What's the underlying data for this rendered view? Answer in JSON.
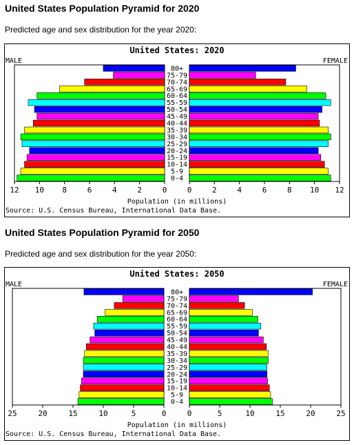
{
  "sections": [
    {
      "heading": "United States Population Pyramid for 2020",
      "subtitle": "Predicted age and sex distribution for the year 2020:"
    },
    {
      "heading": "United States Population Pyramid for 2050",
      "subtitle": "Predicted age and sex distribution for the year 2050:"
    }
  ],
  "chart_data": [
    {
      "type": "bar",
      "orientation": "horizontal-pyramid",
      "title": "United States: 2020",
      "left_label": "MALE",
      "right_label": "FEMALE",
      "xlabel": "Population (in millions)",
      "source": "Source: U.S. Census Bureau, International Data Base.",
      "xlim": [
        0,
        12
      ],
      "xticks": [
        "12",
        "10",
        "8",
        "6",
        "4",
        "2",
        "0",
        "0",
        "2",
        "4",
        "6",
        "8",
        "10",
        "12"
      ],
      "grid": false,
      "categories": [
        "80+",
        "75-79",
        "70-74",
        "65-69",
        "60-64",
        "55-59",
        "50-54",
        "45-49",
        "40-44",
        "35-39",
        "30-34",
        "25-29",
        "20-24",
        "15-19",
        "10-14",
        "5-9",
        "0-4"
      ],
      "colors": [
        "#0000ff",
        "#ff00ff",
        "#ff0000",
        "#ffff00",
        "#00ff00",
        "#00ffff",
        "#0000ff",
        "#ff00ff",
        "#ff0000",
        "#ffff00",
        "#00ff00",
        "#00ffff",
        "#0000ff",
        "#ff00ff",
        "#ff0000",
        "#ffff00",
        "#00ff00"
      ],
      "series": [
        {
          "name": "MALE",
          "values": [
            4.9,
            4.1,
            6.4,
            8.4,
            10.2,
            10.9,
            10.4,
            10.2,
            10.5,
            11.2,
            11.5,
            11.4,
            10.8,
            11.0,
            11.2,
            11.5,
            11.8
          ]
        },
        {
          "name": "FEMALE",
          "values": [
            8.5,
            5.3,
            7.7,
            9.4,
            10.9,
            11.3,
            10.6,
            10.3,
            10.4,
            11.1,
            11.3,
            11.1,
            10.3,
            10.5,
            10.8,
            11.1,
            11.3
          ]
        }
      ]
    },
    {
      "type": "bar",
      "orientation": "horizontal-pyramid",
      "title": "United States: 2050",
      "left_label": "MALE",
      "right_label": "FEMALE",
      "xlabel": "Population (in millions)",
      "source": "Source: U.S. Census Bureau, International Data Base.",
      "xlim": [
        0,
        25
      ],
      "xticks": [
        "25",
        "20",
        "15",
        "10",
        "5",
        "0",
        "0",
        "5",
        "10",
        "15",
        "20",
        "25"
      ],
      "grid": false,
      "categories": [
        "80+",
        "75-79",
        "70-74",
        "65-69",
        "60-64",
        "55-59",
        "50-54",
        "45-49",
        "40-44",
        "35-39",
        "30-34",
        "25-29",
        "20-24",
        "15-19",
        "10-14",
        "5-9",
        "0-4"
      ],
      "colors": [
        "#0000ff",
        "#ff00ff",
        "#ff0000",
        "#ffff00",
        "#00ff00",
        "#00ffff",
        "#0000ff",
        "#ff00ff",
        "#ff0000",
        "#ffff00",
        "#00ff00",
        "#00ffff",
        "#0000ff",
        "#ff00ff",
        "#ff0000",
        "#ffff00",
        "#00ff00"
      ],
      "series": [
        {
          "name": "MALE",
          "values": [
            13.2,
            6.8,
            8.2,
            9.7,
            11.0,
            11.6,
            11.4,
            12.2,
            12.8,
            13.1,
            13.3,
            13.3,
            13.3,
            13.6,
            13.8,
            14.0,
            14.2
          ]
        },
        {
          "name": "FEMALE",
          "values": [
            20.3,
            8.1,
            9.1,
            10.4,
            11.3,
            11.8,
            11.4,
            12.2,
            12.7,
            13.0,
            13.0,
            12.8,
            12.8,
            12.9,
            13.2,
            13.4,
            13.7
          ]
        }
      ]
    }
  ]
}
